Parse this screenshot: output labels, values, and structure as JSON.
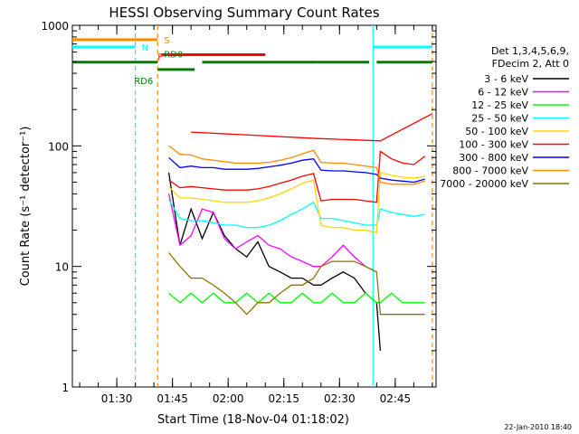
{
  "chart_data": {
    "type": "line",
    "title": "HESSI Observing Summary Count Rates",
    "xlabel": "Start Time (18-Nov-04 01:18:02)",
    "ylabel": "Count Rate (s⁻¹ detector⁻¹)",
    "y_scale": "log",
    "ylim": [
      1,
      1000
    ],
    "xlim": [
      "01:18:02",
      "02:56:00"
    ],
    "x_ticks": [
      "01:30",
      "01:45",
      "02:00",
      "02:15",
      "02:30",
      "02:45"
    ],
    "y_ticks": [
      "1",
      "10",
      "100",
      "1000"
    ],
    "grid": false,
    "legend_position": "right",
    "legend_header": [
      "Det 1,3,4,5,6,9,",
      "FDecim 2, Att 0"
    ],
    "timestamp": "22-Jan-2010 18:40",
    "x": [
      "01:44",
      "01:47",
      "01:50",
      "01:53",
      "01:56",
      "01:59",
      "02:02",
      "02:05",
      "02:08",
      "02:11",
      "02:14",
      "02:17",
      "02:20",
      "02:23",
      "02:25",
      "02:28",
      "02:31",
      "02:34",
      "02:37",
      "02:40",
      "02:41",
      "02:44",
      "02:47",
      "02:50",
      "02:53"
    ],
    "series": [
      {
        "name": "3 - 6 keV",
        "color": "#000000",
        "values": [
          60,
          15,
          30,
          17,
          28,
          18,
          14,
          12,
          16,
          10,
          9,
          8,
          8,
          7,
          7,
          8,
          9,
          8,
          6,
          5,
          2,
          null,
          null,
          null,
          null
        ]
      },
      {
        "name": "6 - 12 keV",
        "color": "#ff00ff",
        "values": [
          40,
          15,
          18,
          30,
          28,
          17,
          14,
          16,
          18,
          15,
          14,
          12,
          11,
          10,
          10,
          12,
          15,
          12,
          10,
          9,
          null,
          null,
          null,
          null,
          null
        ]
      },
      {
        "name": "12 - 25 keV",
        "color": "#00ff00",
        "values": [
          6,
          5,
          6,
          5,
          6,
          5,
          5,
          6,
          5,
          6,
          5,
          5,
          6,
          5,
          5,
          6,
          5,
          5,
          6,
          5,
          5,
          6,
          5,
          5,
          5
        ]
      },
      {
        "name": "25 - 50 keV",
        "color": "#00ffff",
        "values": [
          36,
          25,
          24,
          24,
          23,
          22,
          22,
          21,
          21,
          22,
          24,
          27,
          30,
          34,
          25,
          25,
          24,
          23,
          22,
          22,
          30,
          28,
          27,
          26,
          27
        ]
      },
      {
        "name": "50 - 100 keV",
        "color": "#ffd700",
        "values": [
          46,
          37,
          37,
          36,
          35,
          34,
          34,
          34,
          35,
          37,
          40,
          44,
          49,
          52,
          22,
          21,
          21,
          20,
          20,
          19,
          60,
          57,
          55,
          54,
          56
        ]
      },
      {
        "name": "100 - 300 keV",
        "color": "#ff0000",
        "values": [
          52,
          45,
          46,
          45,
          44,
          43,
          43,
          43,
          44,
          46,
          49,
          52,
          56,
          59,
          35,
          36,
          36,
          36,
          35,
          34,
          90,
          78,
          72,
          70,
          82
        ]
      },
      {
        "name": "300 - 800 keV",
        "color": "#0000ff",
        "values": [
          80,
          66,
          68,
          66,
          66,
          64,
          64,
          64,
          65,
          67,
          69,
          72,
          76,
          78,
          63,
          62,
          62,
          61,
          60,
          58,
          54,
          52,
          51,
          50,
          53
        ]
      },
      {
        "name": "800 - 7000 keV",
        "color": "#ff8c00",
        "values": [
          100,
          85,
          84,
          78,
          76,
          74,
          72,
          72,
          72,
          73,
          76,
          80,
          86,
          92,
          73,
          72,
          72,
          70,
          68,
          66,
          50,
          48,
          48,
          48,
          51
        ]
      },
      {
        "name": "7000 - 20000 keV",
        "color": "#8b7500",
        "values": [
          13,
          10,
          8,
          8,
          7,
          6,
          5,
          4,
          5,
          5,
          6,
          7,
          7,
          8,
          10,
          11,
          11,
          11,
          10,
          9,
          4,
          4,
          4,
          4,
          4
        ]
      }
    ],
    "red_step": {
      "x": [
        "01:50",
        "02:24",
        "02:41",
        "02:55"
      ],
      "values": [
        130,
        115,
        110,
        185
      ]
    },
    "state_bars": [
      {
        "label": "S",
        "color": "#ff8c00",
        "level": 760,
        "segments": [
          [
            "01:18",
            "01:41"
          ]
        ]
      },
      {
        "label": "N",
        "color": "#00ffff",
        "level": 660,
        "segments": [
          [
            "01:18",
            "01:35"
          ],
          [
            "02:39",
            "02:55"
          ]
        ]
      },
      {
        "label": "F",
        "color": "#ff0000",
        "level": 570,
        "segments": [
          [
            "01:42",
            "02:10"
          ]
        ]
      },
      {
        "label": "RD0",
        "color": "#008000",
        "level": 495,
        "segments": [
          [
            "01:18",
            "01:41"
          ],
          [
            "01:53",
            "02:24"
          ],
          [
            "02:24",
            "02:38"
          ],
          [
            "02:40",
            "02:55"
          ]
        ]
      },
      {
        "label": "RD6",
        "color": "#008000",
        "level": 430,
        "segments": [
          [
            "01:41",
            "01:51"
          ]
        ]
      }
    ],
    "vertical_markers": [
      {
        "time": "01:35",
        "color": "#00ffff",
        "style": "dashed"
      },
      {
        "time": "01:41",
        "color": "#ff8c00",
        "style": "dashed"
      },
      {
        "time": "02:39",
        "color": "#00ffff",
        "style": "solid"
      },
      {
        "time": "02:55",
        "color": "#ff8c00",
        "style": "dashed"
      }
    ]
  }
}
